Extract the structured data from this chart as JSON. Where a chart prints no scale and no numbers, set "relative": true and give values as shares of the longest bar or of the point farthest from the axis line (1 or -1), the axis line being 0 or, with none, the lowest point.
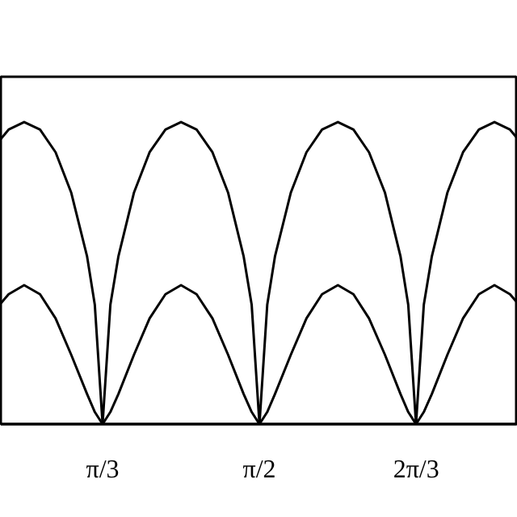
{
  "chart_data": {
    "type": "line",
    "relative": true,
    "x": [
      0.707,
      0.733,
      0.785,
      0.838,
      0.89,
      0.942,
      0.995,
      1.021,
      1.047,
      1.073,
      1.1,
      1.152,
      1.204,
      1.257,
      1.309,
      1.361,
      1.414,
      1.466,
      1.518,
      1.545,
      1.571,
      1.597,
      1.623,
      1.676,
      1.728,
      1.78,
      1.833,
      1.885,
      1.937,
      1.99,
      2.042,
      2.068,
      2.094,
      2.12,
      2.147,
      2.199,
      2.251,
      2.304,
      2.356,
      2.408,
      2.434
    ],
    "series": [
      {
        "color": "#000000",
        "values": [
          0.944,
          0.975,
          1,
          0.975,
          0.9,
          0.767,
          0.556,
          0.395,
          0,
          0.395,
          0.556,
          0.767,
          0.9,
          0.975,
          1,
          0.975,
          0.9,
          0.767,
          0.556,
          0.395,
          0,
          0.395,
          0.556,
          0.767,
          0.9,
          0.975,
          1,
          0.975,
          0.9,
          0.767,
          0.556,
          0.395,
          0,
          0.395,
          0.556,
          0.767,
          0.9,
          0.975,
          1,
          0.975,
          0.944
        ]
      },
      {
        "color": "#000000",
        "values": [
          0.4,
          0.43,
          0.46,
          0.43,
          0.35,
          0.23,
          0.1,
          0.04,
          0,
          0.04,
          0.1,
          0.23,
          0.35,
          0.43,
          0.46,
          0.43,
          0.35,
          0.23,
          0.1,
          0.04,
          0,
          0.04,
          0.1,
          0.23,
          0.35,
          0.43,
          0.46,
          0.43,
          0.35,
          0.23,
          0.1,
          0.04,
          0,
          0.04,
          0.1,
          0.23,
          0.35,
          0.43,
          0.46,
          0.43,
          0.4
        ]
      }
    ],
    "xlim": [
      0.707,
      2.434
    ],
    "xticks": [
      {
        "value": 1.0472,
        "label": "π/3"
      },
      {
        "value": 1.5708,
        "label": "π/2"
      },
      {
        "value": 2.0944,
        "label": "2π/3"
      }
    ],
    "grid": false,
    "tick_labels": "x"
  }
}
